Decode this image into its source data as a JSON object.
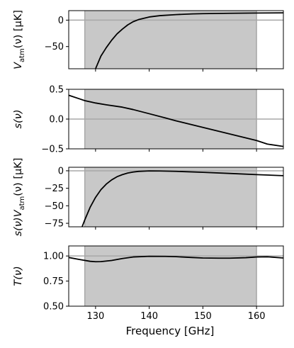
{
  "colors": {
    "band_fill": "#c8c8c8",
    "band_edge": "#8c8c8c",
    "ref_line": "#a8a8a8",
    "curve": "#000000",
    "frame": "#000000",
    "background": "#ffffff"
  },
  "chart_data": [
    {
      "type": "line",
      "ylabel_main": "V",
      "ylabel_sub": "atm",
      "ylabel_rest": "(ν) [μK]",
      "xlim": [
        125,
        165
      ],
      "ylim": [
        -92,
        18
      ],
      "yticks": [
        0,
        -50
      ],
      "ytick_labels": [
        "0",
        "−50"
      ],
      "band": [
        128,
        160
      ],
      "ref_y": 0,
      "series": [
        {
          "x": [
            130,
            131,
            132,
            133,
            134,
            135,
            136,
            137,
            138,
            140,
            142,
            145,
            148,
            150,
            155,
            160,
            165
          ],
          "y": [
            -92,
            -68,
            -52,
            -38,
            -26,
            -17,
            -9,
            -3,
            1,
            6,
            8.5,
            10.5,
            11.8,
            12.3,
            13,
            13.5,
            13.8
          ]
        }
      ]
    },
    {
      "type": "line",
      "ylabel_main": "s(ν)",
      "ylabel_sub": "",
      "ylabel_rest": "",
      "xlim": [
        125,
        165
      ],
      "ylim": [
        -0.5,
        0.5
      ],
      "yticks": [
        0.5,
        0.0,
        -0.5
      ],
      "ytick_labels": [
        "0.5",
        "0.0",
        "−0.5"
      ],
      "band": [
        128,
        160
      ],
      "ref_y": 0,
      "series": [
        {
          "x": [
            125,
            127,
            128,
            130,
            132,
            135,
            137,
            140,
            143,
            145,
            150,
            155,
            160,
            162,
            165
          ],
          "y": [
            0.4,
            0.34,
            0.31,
            0.27,
            0.24,
            0.2,
            0.16,
            0.09,
            0.02,
            -0.03,
            -0.14,
            -0.25,
            -0.36,
            -0.42,
            -0.46
          ]
        }
      ]
    },
    {
      "type": "line",
      "ylabel_main": "s(ν)V",
      "ylabel_sub": "atm",
      "ylabel_rest": "(ν) [μK]",
      "xlim": [
        125,
        165
      ],
      "ylim": [
        -80,
        5
      ],
      "yticks": [
        0,
        -25,
        -50,
        -75
      ],
      "ytick_labels": [
        "0",
        "−25",
        "−50",
        "−75"
      ],
      "band": [
        128,
        160
      ],
      "ref_y": 0,
      "series": [
        {
          "x": [
            127.5,
            128,
            129,
            130,
            131,
            132,
            133,
            134,
            135,
            136,
            137,
            138,
            140,
            142,
            145,
            150,
            155,
            160,
            165
          ],
          "y": [
            -80,
            -70,
            -52,
            -38,
            -27,
            -19,
            -13,
            -8.5,
            -5.5,
            -3.2,
            -1.8,
            -0.9,
            -0.2,
            -0.3,
            -0.8,
            -2.2,
            -3.8,
            -5.5,
            -7
          ]
        }
      ]
    },
    {
      "type": "line",
      "ylabel_main": "T(ν)",
      "ylabel_sub": "",
      "ylabel_rest": "",
      "xlabel": "Frequency [GHz]",
      "xlim": [
        125,
        165
      ],
      "ylim": [
        0.5,
        1.1
      ],
      "yticks": [
        1.0,
        0.75,
        0.5
      ],
      "ytick_labels": [
        "1.00",
        "0.75",
        "0.50"
      ],
      "xticks": [
        130,
        140,
        150,
        160
      ],
      "xtick_labels": [
        "130",
        "140",
        "150",
        "160"
      ],
      "band": [
        128,
        160
      ],
      "ref_y": 1.0,
      "series": [
        {
          "x": [
            125,
            127,
            129,
            130,
            131,
            133,
            135,
            137,
            140,
            143,
            145,
            148,
            150,
            153,
            155,
            158,
            160,
            162,
            165
          ],
          "y": [
            0.985,
            0.965,
            0.947,
            0.943,
            0.944,
            0.955,
            0.975,
            0.99,
            0.997,
            0.996,
            0.993,
            0.985,
            0.98,
            0.978,
            0.978,
            0.983,
            0.99,
            0.992,
            0.98
          ]
        }
      ]
    }
  ]
}
